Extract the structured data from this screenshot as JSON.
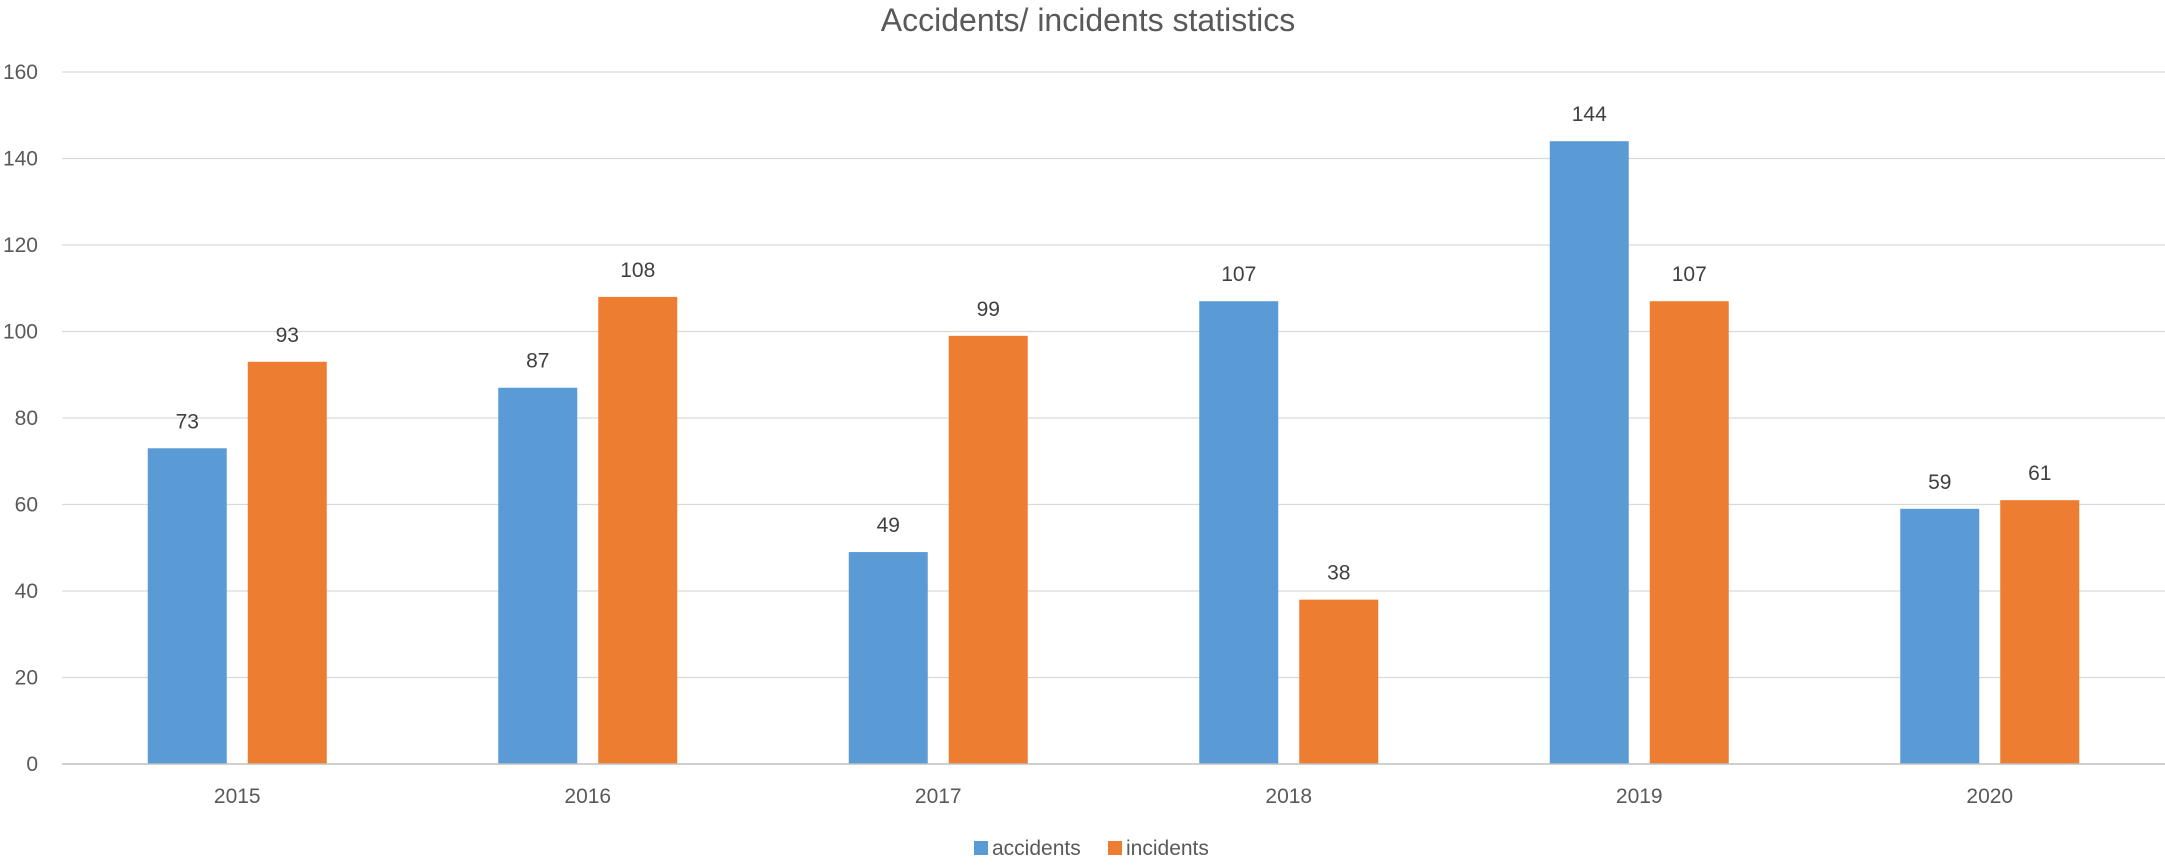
{
  "chart_data": {
    "type": "bar",
    "title": "Accidents/ incidents statistics",
    "xlabel": "",
    "ylabel": "",
    "categories": [
      "2015",
      "2016",
      "2017",
      "2018",
      "2019",
      "2020"
    ],
    "series": [
      {
        "name": "accidents",
        "color": "#5b9bd5",
        "values": [
          73,
          87,
          49,
          107,
          144,
          59
        ]
      },
      {
        "name": "incidents",
        "color": "#ed7d31",
        "values": [
          93,
          108,
          99,
          38,
          107,
          61
        ]
      }
    ],
    "ylim": [
      0,
      160
    ],
    "yticks": [
      "0",
      "20",
      "40",
      "60",
      "80",
      "100",
      "120",
      "140",
      "160"
    ],
    "grid": true,
    "legend_position": "bottom-center",
    "data_labels": true
  }
}
